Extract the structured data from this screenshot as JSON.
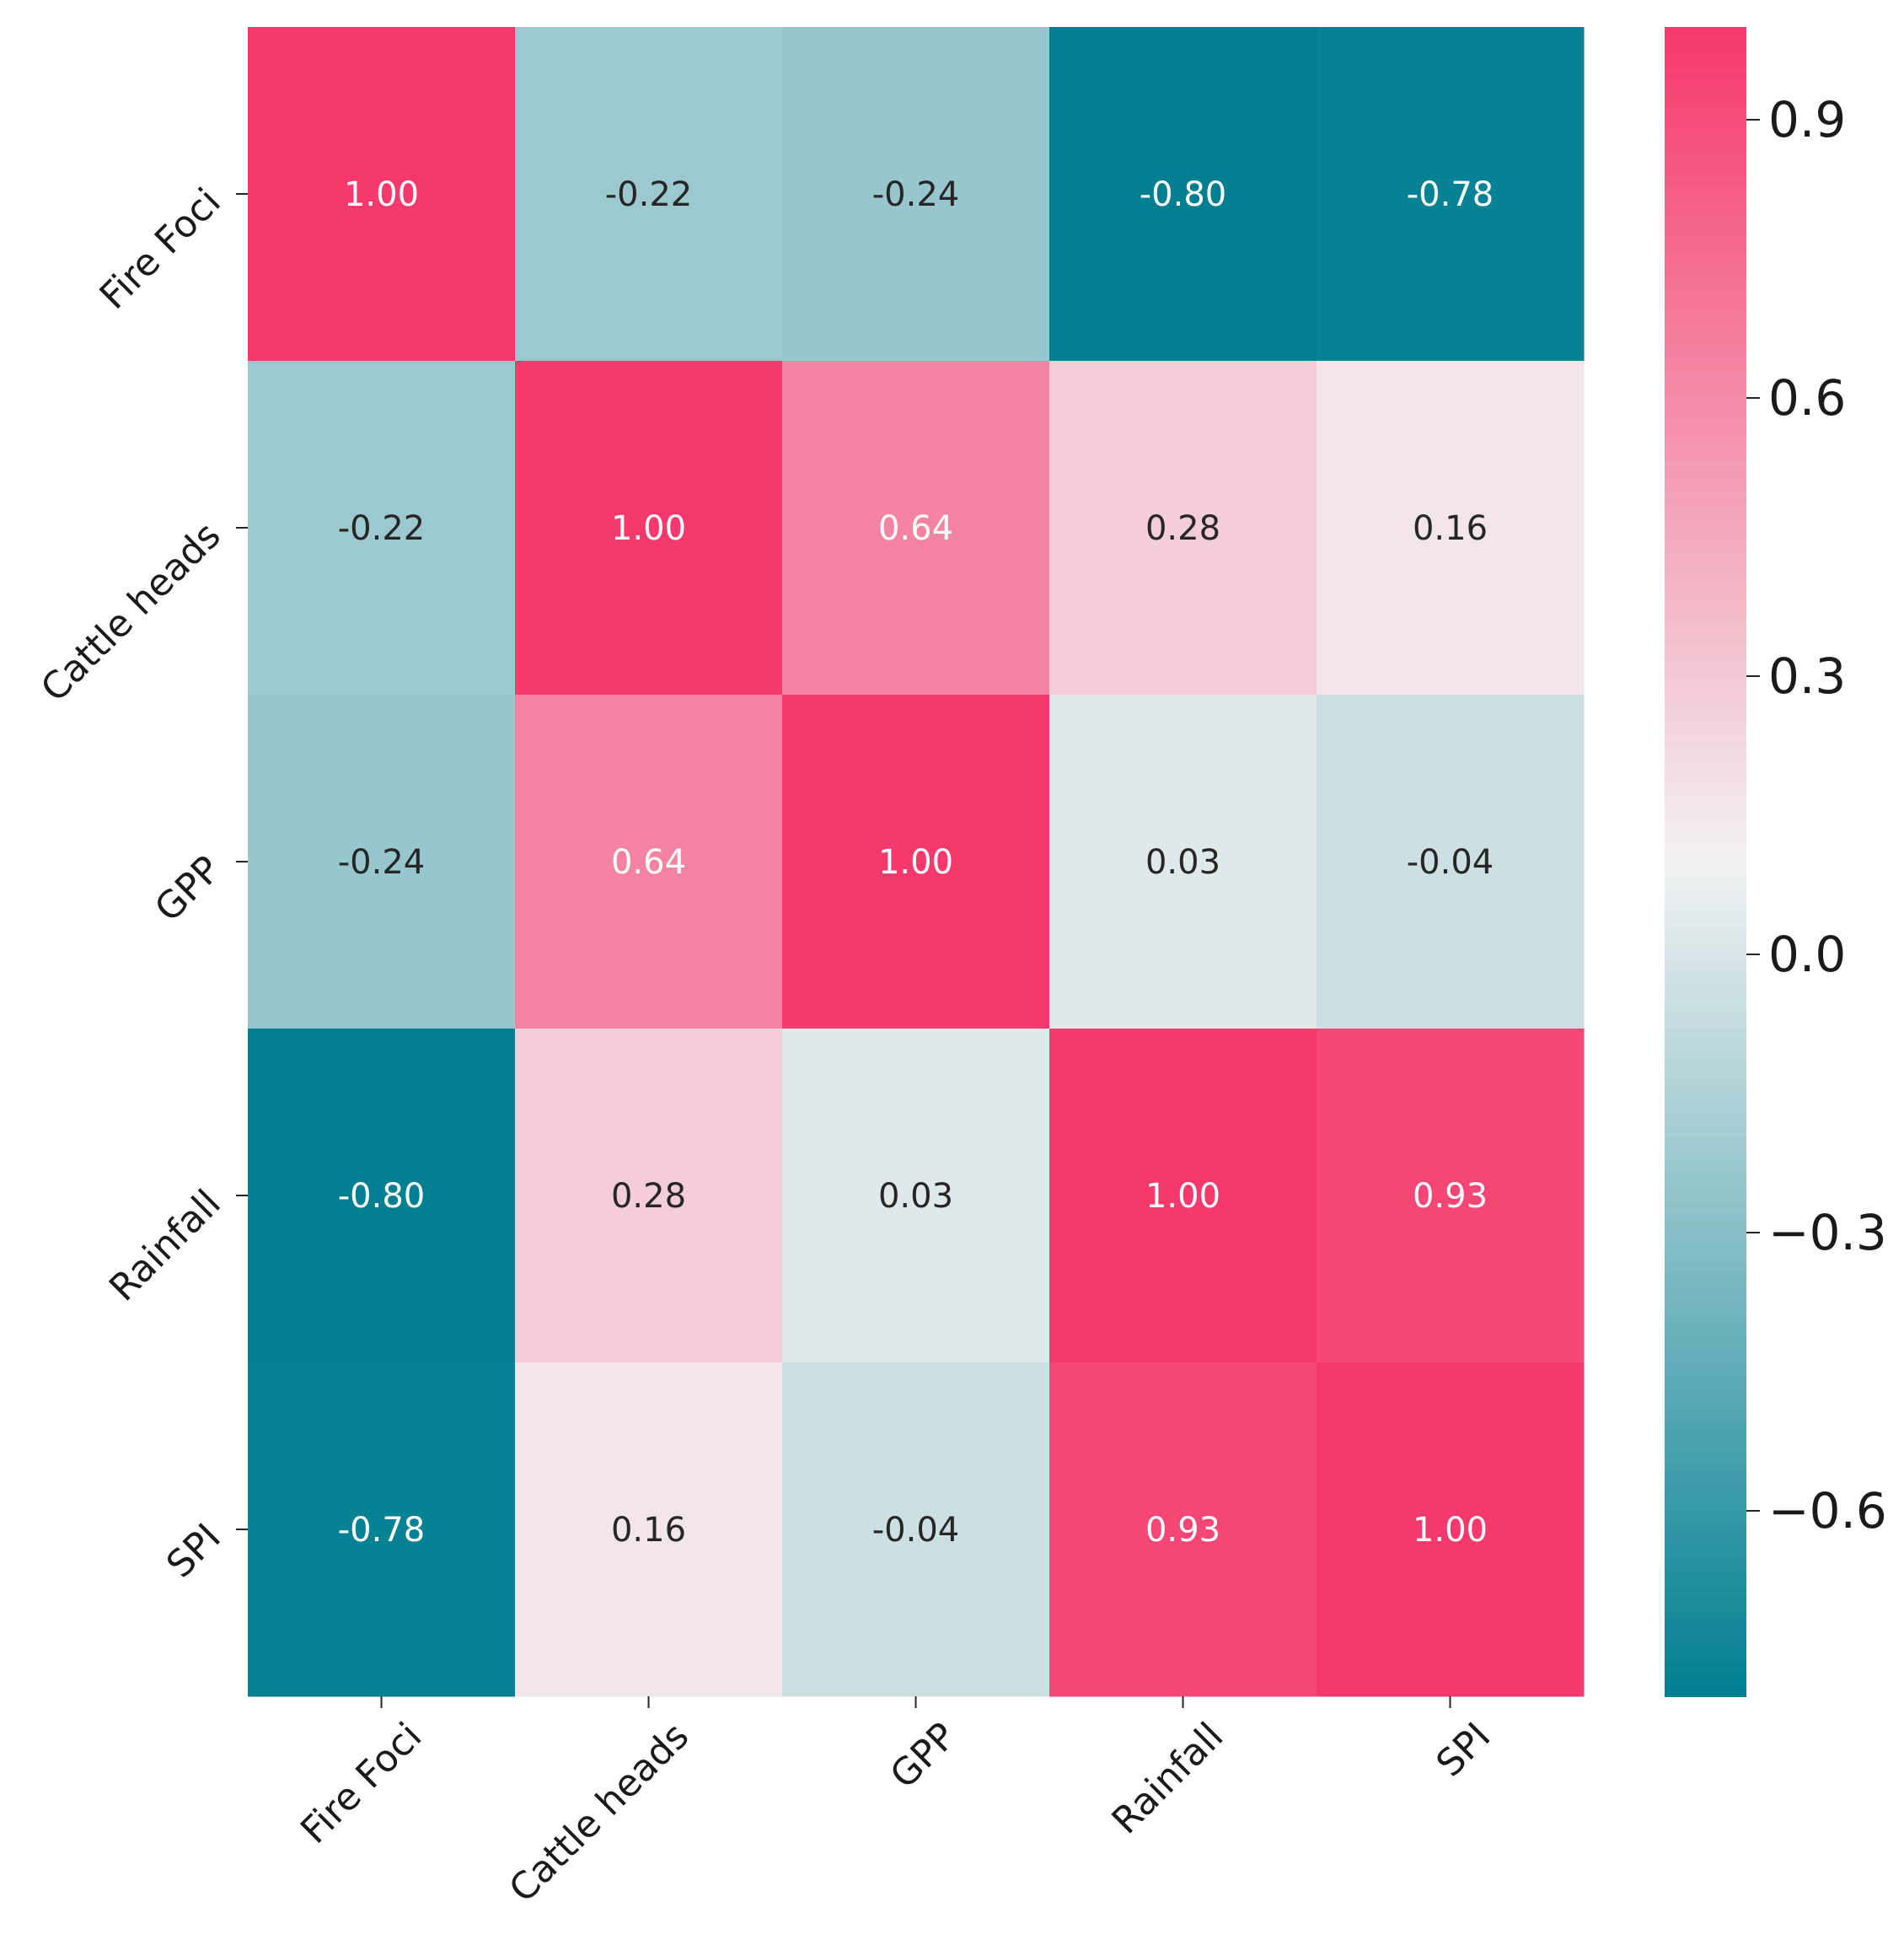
{
  "chart_data": {
    "type": "heatmap",
    "title": "",
    "row_labels": [
      "Fire Foci",
      "Cattle heads",
      "GPP",
      "Rainfall",
      "SPI"
    ],
    "col_labels": [
      "Fire Foci",
      "Cattle heads",
      "GPP",
      "Rainfall",
      "SPI"
    ],
    "values": [
      [
        1.0,
        -0.22,
        -0.24,
        -0.8,
        -0.78
      ],
      [
        -0.22,
        1.0,
        0.64,
        0.28,
        0.16
      ],
      [
        -0.24,
        0.64,
        1.0,
        0.03,
        -0.04
      ],
      [
        -0.8,
        0.28,
        0.03,
        1.0,
        0.93
      ],
      [
        -0.78,
        0.16,
        -0.04,
        0.93,
        1.0
      ]
    ],
    "cell_labels": [
      [
        "1.00",
        "-0.22",
        "-0.24",
        "-0.80",
        "-0.78"
      ],
      [
        "-0.22",
        "1.00",
        "0.64",
        "0.28",
        "0.16"
      ],
      [
        "-0.24",
        "0.64",
        "1.00",
        "0.03",
        "-0.04"
      ],
      [
        "-0.80",
        "0.28",
        "0.03",
        "1.00",
        "0.93"
      ],
      [
        "-0.78",
        "0.16",
        "-0.04",
        "0.93",
        "1.00"
      ]
    ],
    "colorbar": {
      "vmin": -0.8,
      "vmax": 1.0,
      "center": 0.1,
      "ticks": [
        0.9,
        0.6,
        0.3,
        0.0,
        -0.3,
        -0.6
      ],
      "tick_labels": [
        "0.9",
        "0.6",
        "0.3",
        "0.0",
        "−0.3",
        "−0.6"
      ],
      "low_color": "#007f91",
      "mid_color": "#f2f2f2",
      "high_color": "#f6386c"
    }
  }
}
